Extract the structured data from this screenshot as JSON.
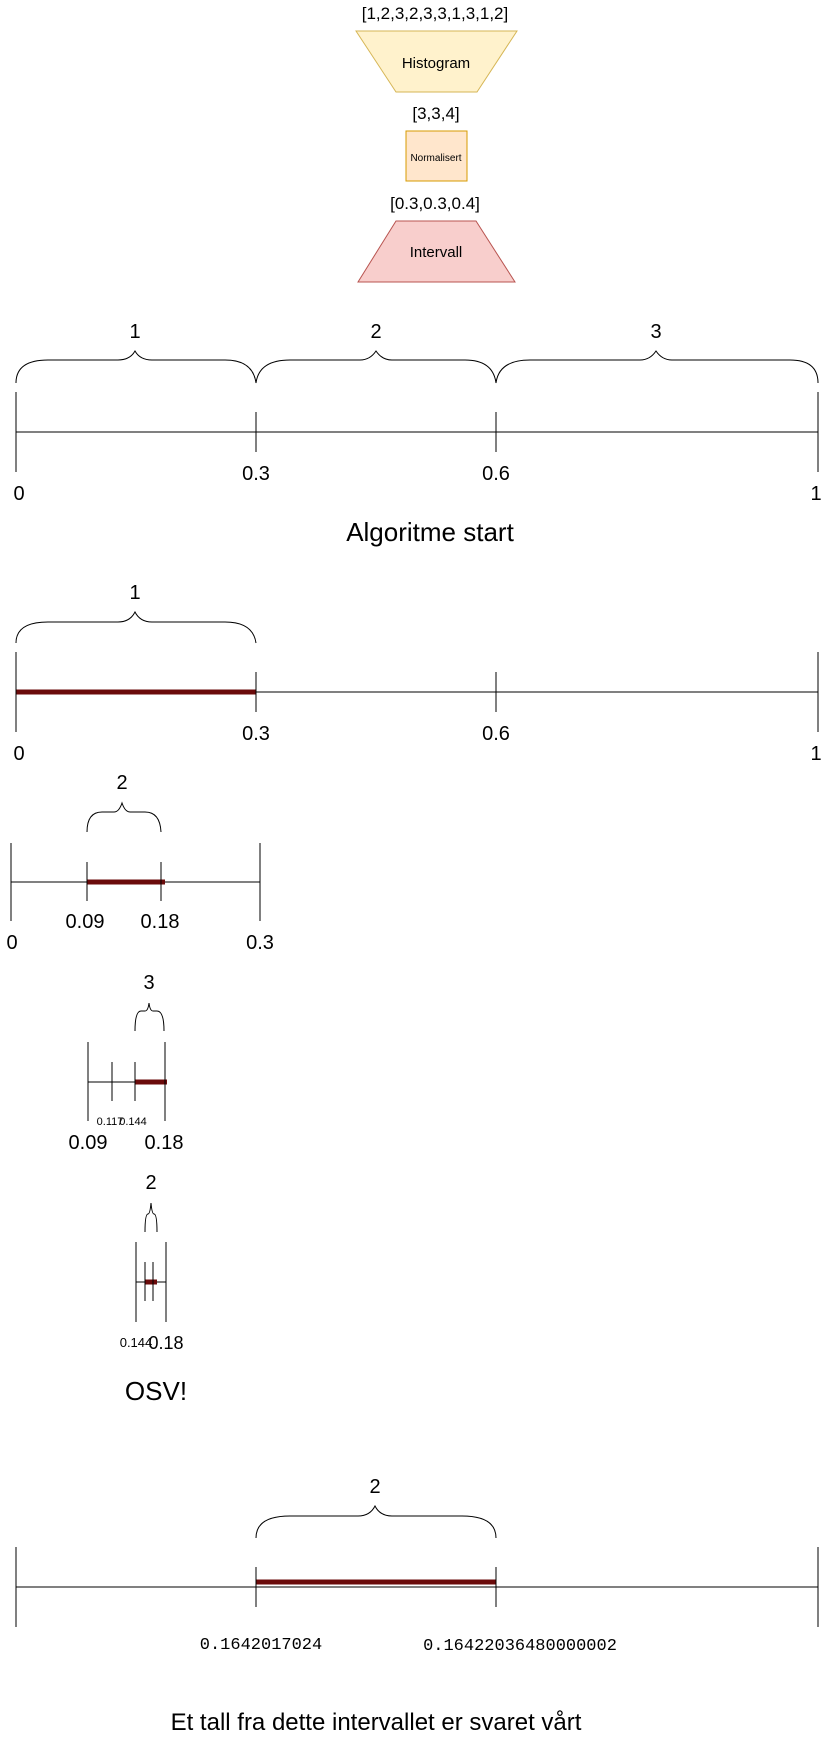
{
  "pipeline": {
    "input_list": "[1,2,3,2,3,3,1,3,1,2]",
    "histogram_label": "Histogram",
    "counts": "[3,3,4]",
    "normalized_label": "Normalisert",
    "probabilities": "[0.3,0.3,0.4]",
    "interval_label": "Intervall",
    "colors": {
      "histogram_fill": "#fff2cc",
      "histogram_stroke": "#d6b656",
      "normalized_fill": "#ffe6cc",
      "normalized_stroke": "#d79b00",
      "interval_fill": "#f8cecc",
      "interval_stroke": "#b85450",
      "highlight": "#6b0b0b"
    }
  },
  "line1": {
    "brace_labels": [
      "1",
      "2",
      "3"
    ],
    "ticks": [
      "0",
      "0.3",
      "0.6",
      "1"
    ],
    "caption": "Algoritme start"
  },
  "line2": {
    "brace_label": "1",
    "ticks": [
      "0",
      "0.3",
      "0.6",
      "1"
    ]
  },
  "line3": {
    "brace_label": "2",
    "ticks": [
      "0",
      "0.09",
      "0.18",
      "0.3"
    ]
  },
  "line4": {
    "brace_label": "3",
    "small_ticks": [
      "0.117",
      "0.144"
    ],
    "ticks": [
      "0.09",
      "0.18"
    ]
  },
  "line5": {
    "brace_label": "2",
    "small_tick": "0.144",
    "tick": "0.18",
    "caption": "OSV!"
  },
  "line6": {
    "brace_label": "2",
    "left_value": "0.1642017024",
    "right_value": "0.16422036480000002",
    "caption": "Et tall fra dette intervallet er svaret vårt"
  }
}
